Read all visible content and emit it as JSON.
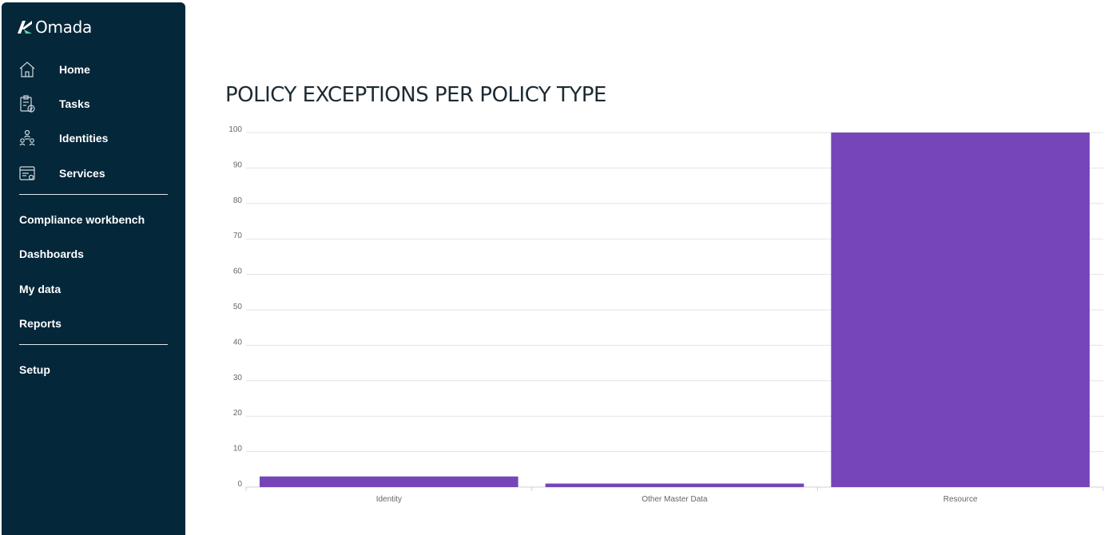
{
  "app": {
    "brand": "Omada"
  },
  "sidebar": {
    "primary": [
      {
        "label": "Home",
        "icon": "home-icon"
      },
      {
        "label": "Tasks",
        "icon": "clipboard-check-icon"
      },
      {
        "label": "Identities",
        "icon": "identities-icon"
      },
      {
        "label": "Services",
        "icon": "services-icon"
      }
    ],
    "secondary": [
      {
        "label": "Compliance workbench"
      },
      {
        "label": "Dashboards"
      },
      {
        "label": "My data"
      },
      {
        "label": "Reports"
      }
    ],
    "tertiary": [
      {
        "label": "Setup"
      }
    ]
  },
  "colors": {
    "sidebar_bg": "#04273a",
    "bar": "#7646b8"
  },
  "chart_data": {
    "type": "bar",
    "title": "POLICY EXCEPTIONS PER POLICY TYPE",
    "categories": [
      "Identity",
      "Other Master Data",
      "Resource"
    ],
    "values": [
      3,
      1,
      100
    ],
    "ylim": [
      0,
      100
    ],
    "yticks": [
      0,
      10,
      20,
      30,
      40,
      50,
      60,
      70,
      80,
      90,
      100
    ],
    "grid": true,
    "xlabel": "",
    "ylabel": ""
  }
}
